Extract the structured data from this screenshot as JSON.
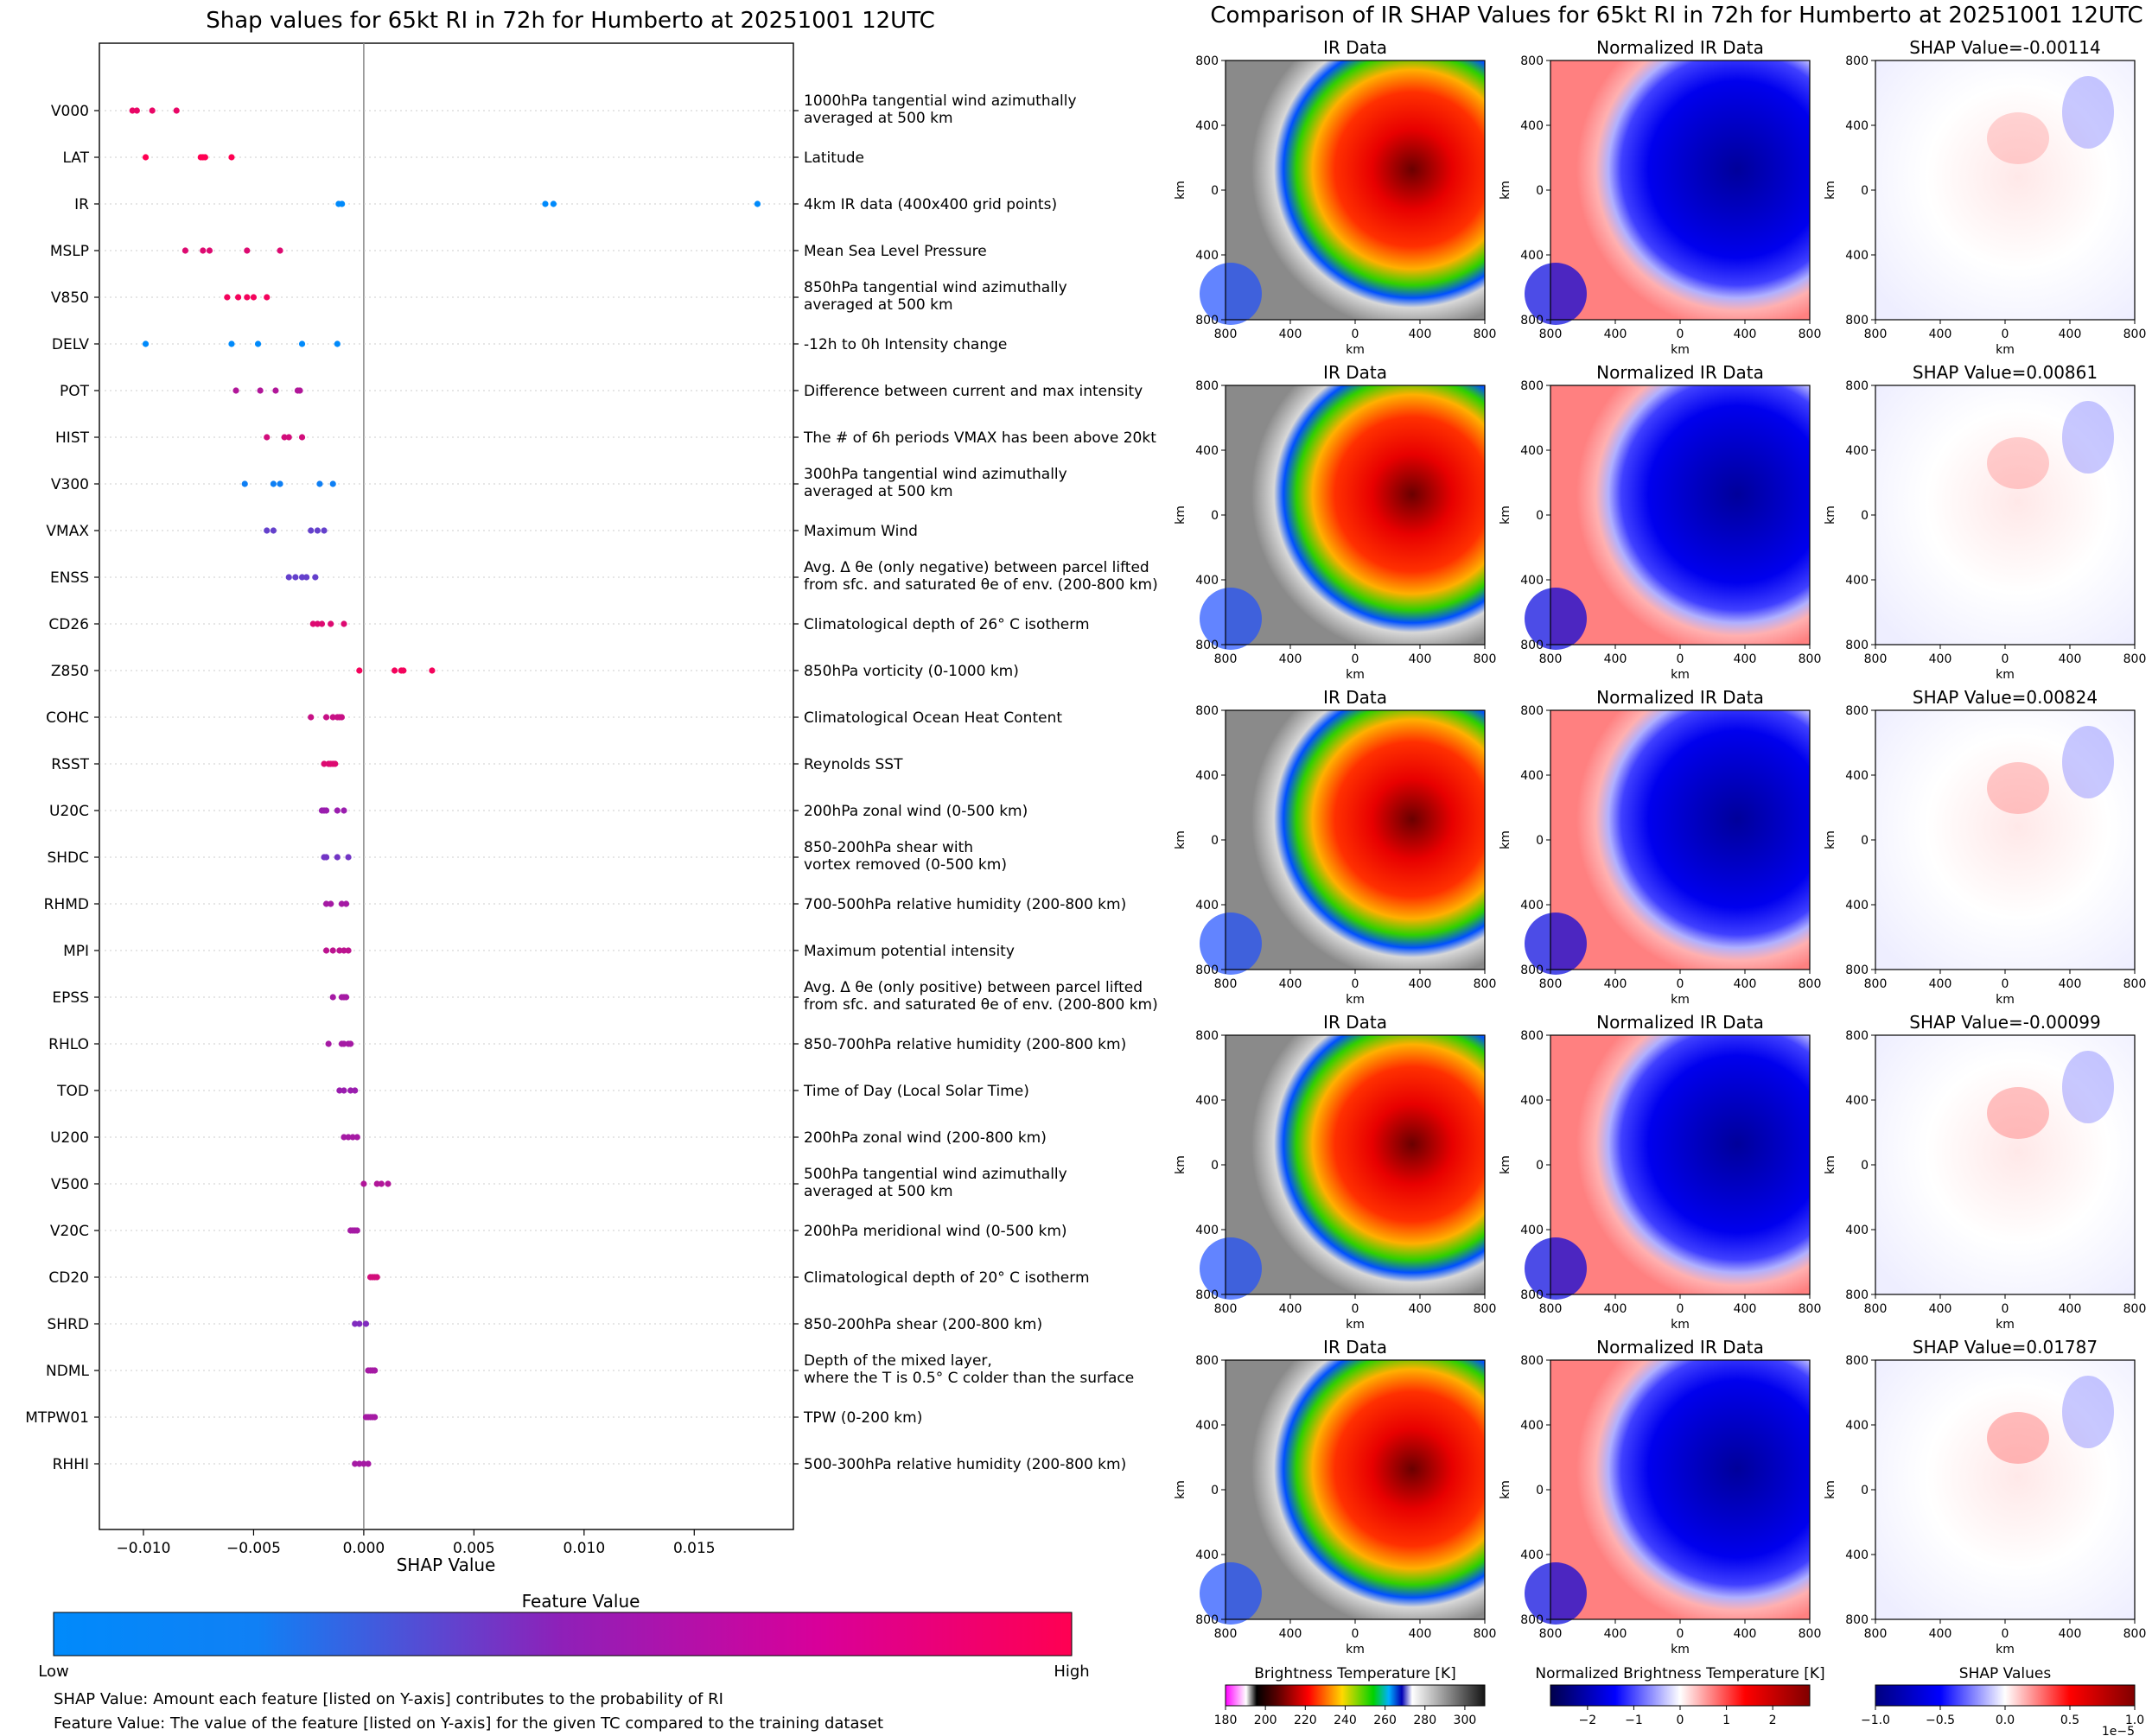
{
  "left_title": "Shap values for 65kt RI in 72h for Humberto at 20251001 12UTC",
  "right_title": "Comparison of IR SHAP Values for 65kt RI in 72h for Humberto at 20251001 12UTC",
  "xlabel": "SHAP Value",
  "feature_value_label": "Feature Value",
  "low_label": "Low",
  "high_label": "High",
  "footnote1": "SHAP Value: Amount each feature [listed on Y-axis] contributes to the probability of RI",
  "footnote2": "Feature Value: The value of the feature [listed on Y-axis] for the given TC compared to the training dataset",
  "panel_titles": {
    "ir": "IR Data",
    "norm": "Normalized IR Data"
  },
  "shap_titles": [
    "SHAP Value=-0.00114",
    "SHAP Value=0.00861",
    "SHAP Value=0.00824",
    "SHAP Value=-0.00099",
    "SHAP Value=0.01787"
  ],
  "panel_ticks": [
    "800",
    "400",
    "0",
    "400",
    "800"
  ],
  "panel_axis_label": "km",
  "colorbars": {
    "bt": {
      "label": "Brightness Temperature [K]",
      "ticks": [
        "180",
        "200",
        "220",
        "240",
        "260",
        "280",
        "300"
      ],
      "range": [
        180,
        310
      ]
    },
    "norm": {
      "label": "Normalized Brightness Temperature [K]",
      "ticks": [
        "−2",
        "−1",
        "0",
        "1",
        "2"
      ],
      "range": [
        -2.8,
        2.8
      ]
    },
    "shap": {
      "label": "SHAP Values",
      "ticks": [
        "−1.0",
        "−0.5",
        "0.0",
        "0.5",
        "1.0"
      ],
      "range": [
        -1.0,
        1.0
      ],
      "offset": "1e−5"
    }
  },
  "colors": {
    "low": "#008afb",
    "mid": "#8f20b8",
    "high": "#ff0052"
  },
  "chart_data": [
    {
      "type": "scatter",
      "subtype": "shap-beeswarm",
      "title": "Shap values for 65kt RI in 72h for Humberto at 20251001 12UTC",
      "xlabel": "SHAP Value",
      "xlim": [
        -0.012,
        0.0195
      ],
      "xticks": [
        -0.01,
        -0.005,
        0.0,
        0.005,
        0.01,
        0.015
      ],
      "xtick_labels": [
        "−0.010",
        "−0.005",
        "0.000",
        "0.005",
        "0.010",
        "0.015"
      ],
      "features": [
        {
          "name": "V000",
          "desc": [
            "1000hPa tangential wind azimuthally",
            "averaged at 500 km"
          ],
          "fv": 0.9,
          "values": [
            -0.0105,
            -0.0103,
            -0.0096,
            -0.0085
          ]
        },
        {
          "name": "LAT",
          "desc": [
            "Latitude"
          ],
          "fv": 1.0,
          "values": [
            -0.0099,
            -0.0074,
            -0.0073,
            -0.0072,
            -0.006
          ]
        },
        {
          "name": "IR",
          "desc": [
            "4km IR data (400x400 grid points)"
          ],
          "fv": 0.0,
          "values": [
            -0.00114,
            -0.00099,
            0.00824,
            0.00861,
            0.01787
          ]
        },
        {
          "name": "MSLP",
          "desc": [
            "Mean Sea Level Pressure"
          ],
          "fv": 0.85,
          "values": [
            -0.0081,
            -0.0073,
            -0.007,
            -0.0053,
            -0.0038
          ]
        },
        {
          "name": "V850",
          "desc": [
            "850hPa tangential wind azimuthally",
            "averaged at 500 km"
          ],
          "fv": 0.95,
          "values": [
            -0.0062,
            -0.0057,
            -0.0053,
            -0.005,
            -0.0044
          ]
        },
        {
          "name": "DELV",
          "desc": [
            "-12h to 0h Intensity change"
          ],
          "fv": 0.0,
          "values": [
            -0.0099,
            -0.006,
            -0.0048,
            -0.0028,
            -0.0012
          ]
        },
        {
          "name": "POT",
          "desc": [
            "Difference between current and max intensity"
          ],
          "fv": 0.65,
          "values": [
            -0.0058,
            -0.0047,
            -0.004,
            -0.003,
            -0.0029
          ]
        },
        {
          "name": "HIST",
          "desc": [
            "The # of 6h periods VMAX has been above 20kt"
          ],
          "fv": 0.8,
          "values": [
            -0.0044,
            -0.0036,
            -0.0034,
            -0.0028
          ]
        },
        {
          "name": "V300",
          "desc": [
            "300hPa tangential wind azimuthally",
            "averaged at 500 km"
          ],
          "fv": 0.05,
          "values": [
            -0.0054,
            -0.0041,
            -0.0038,
            -0.002,
            -0.0014
          ]
        },
        {
          "name": "VMAX",
          "desc": [
            "Maximum Wind"
          ],
          "fv": 0.35,
          "values": [
            -0.0044,
            -0.0041,
            -0.0024,
            -0.0021,
            -0.0018
          ]
        },
        {
          "name": "ENSS",
          "desc": [
            "Avg. Δ θe (only negative) between parcel lifted",
            "from sfc. and saturated θe of env. (200-800 km)"
          ],
          "fv": 0.35,
          "values": [
            -0.0034,
            -0.0031,
            -0.0028,
            -0.0026,
            -0.0022
          ]
        },
        {
          "name": "CD26",
          "desc": [
            "Climatological depth of 26° C isotherm"
          ],
          "fv": 0.85,
          "values": [
            -0.0023,
            -0.0021,
            -0.0019,
            -0.0015,
            -0.0009
          ]
        },
        {
          "name": "Z850",
          "desc": [
            "850hPa vorticity (0-1000 km)"
          ],
          "fv": 0.95,
          "values": [
            -0.0002,
            0.0014,
            0.0017,
            0.0018,
            0.0031
          ]
        },
        {
          "name": "COHC",
          "desc": [
            "Climatological Ocean Heat Content"
          ],
          "fv": 0.75,
          "values": [
            -0.0024,
            -0.0017,
            -0.0014,
            -0.0012,
            -0.0011,
            -0.001
          ]
        },
        {
          "name": "RSST",
          "desc": [
            "Reynolds SST"
          ],
          "fv": 0.85,
          "values": [
            -0.0018,
            -0.0016,
            -0.0015,
            -0.0014,
            -0.0013
          ]
        },
        {
          "name": "U20C",
          "desc": [
            "200hPa zonal wind (0-500 km)"
          ],
          "fv": 0.55,
          "values": [
            -0.0019,
            -0.0018,
            -0.0017,
            -0.0012,
            -0.0009
          ]
        },
        {
          "name": "SHDC",
          "desc": [
            "850-200hPa shear with",
            "vortex removed (0-500 km)"
          ],
          "fv": 0.4,
          "values": [
            -0.0018,
            -0.0017,
            -0.0012,
            -0.0007
          ]
        },
        {
          "name": "RHMD",
          "desc": [
            "700-500hPa relative humidity (200-800 km)"
          ],
          "fv": 0.6,
          "values": [
            -0.0017,
            -0.0015,
            -0.001,
            -0.0008
          ]
        },
        {
          "name": "MPI",
          "desc": [
            "Maximum potential intensity"
          ],
          "fv": 0.7,
          "values": [
            -0.0017,
            -0.0014,
            -0.0011,
            -0.0009,
            -0.0007
          ]
        },
        {
          "name": "EPSS",
          "desc": [
            "Avg. Δ θe (only positive) between parcel lifted",
            "from sfc. and saturated θe of env. (200-800 km)"
          ],
          "fv": 0.6,
          "values": [
            -0.0014,
            -0.001,
            -0.0009,
            -0.0008
          ]
        },
        {
          "name": "RHLO",
          "desc": [
            "850-700hPa relative humidity (200-800 km)"
          ],
          "fv": 0.6,
          "values": [
            -0.0016,
            -0.001,
            -0.0009,
            -0.0007,
            -0.0006
          ]
        },
        {
          "name": "TOD",
          "desc": [
            "Time of Day (Local Solar Time)"
          ],
          "fv": 0.55,
          "values": [
            -0.0011,
            -0.0009,
            -0.0006,
            -0.0004
          ]
        },
        {
          "name": "U200",
          "desc": [
            "200hPa zonal wind (200-800 km)"
          ],
          "fv": 0.6,
          "values": [
            -0.0009,
            -0.0007,
            -0.0005,
            -0.0003
          ]
        },
        {
          "name": "V500",
          "desc": [
            "500hPa tangential wind azimuthally",
            "averaged at 500 km"
          ],
          "fv": 0.65,
          "values": [
            0.0,
            0.0006,
            0.0008,
            0.0011
          ]
        },
        {
          "name": "V20C",
          "desc": [
            "200hPa meridional wind (0-500 km)"
          ],
          "fv": 0.6,
          "values": [
            -0.0006,
            -0.0005,
            -0.0004,
            -0.0003
          ]
        },
        {
          "name": "CD20",
          "desc": [
            "Climatological depth of 20° C isotherm"
          ],
          "fv": 0.8,
          "values": [
            0.0003,
            0.0004,
            0.0005,
            0.0006
          ]
        },
        {
          "name": "SHRD",
          "desc": [
            "850-200hPa shear (200-800 km)"
          ],
          "fv": 0.45,
          "values": [
            -0.0004,
            -0.0002,
            0.0001
          ]
        },
        {
          "name": "NDML",
          "desc": [
            "Depth of the mixed layer,",
            "where the T is 0.5° C colder than the surface"
          ],
          "fv": 0.6,
          "values": [
            0.0002,
            0.0003,
            0.0004,
            0.0005
          ]
        },
        {
          "name": "MTPW01",
          "desc": [
            "TPW (0-200 km)"
          ],
          "fv": 0.6,
          "values": [
            0.0001,
            0.0002,
            0.0003,
            0.0004,
            0.0005
          ]
        },
        {
          "name": "RHHI",
          "desc": [
            "500-300hPa relative humidity (200-800 km)"
          ],
          "fv": 0.6,
          "values": [
            -0.0004,
            -0.0002,
            0.0,
            0.0002
          ]
        }
      ]
    },
    {
      "type": "heatmap",
      "title": "Comparison of IR SHAP Values for 65kt RI in 72h for Humberto at 20251001 12UTC",
      "panels": [
        "IR Data",
        "Normalized IR Data",
        "SHAP Value"
      ],
      "shap_values": [
        -0.00114,
        0.00861,
        0.00824,
        -0.00099,
        0.01787
      ],
      "x_range_km": [
        -800,
        800
      ],
      "y_range_km": [
        -800,
        800
      ]
    }
  ]
}
